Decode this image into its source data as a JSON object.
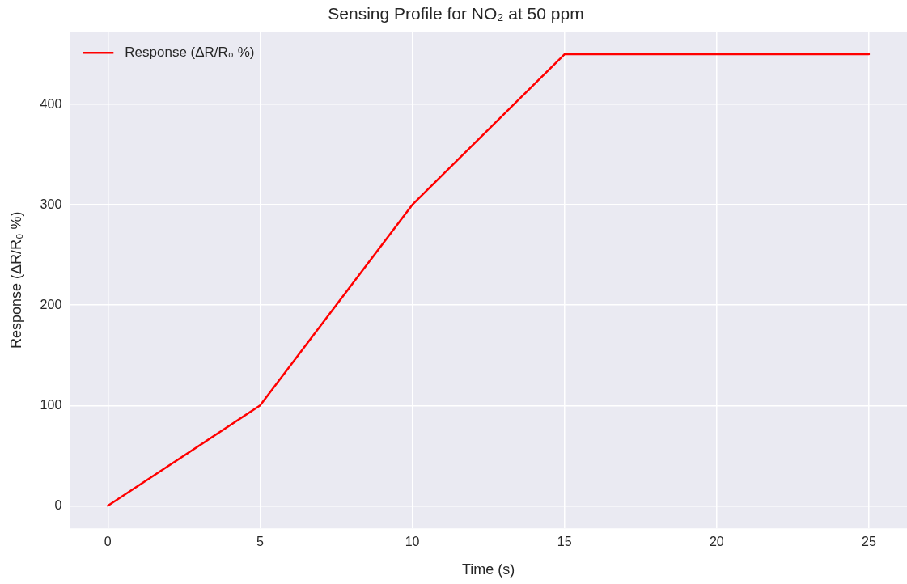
{
  "chart_data": {
    "type": "line",
    "title": "Sensing Profile for NO₂ at 50 ppm",
    "xlabel": "Time (s)",
    "ylabel": "Response (ΔR/R₀ %)",
    "x": [
      0,
      5,
      10,
      15,
      20,
      25
    ],
    "series": [
      {
        "name": "Response (ΔR/R₀ %)",
        "color": "#ff0000",
        "values": [
          0,
          100,
          300,
          450,
          450,
          450
        ]
      }
    ],
    "xlim": [
      -1.25,
      26.25
    ],
    "xticks": [
      0,
      5,
      10,
      15,
      20,
      25
    ],
    "ylim": [
      -22.5,
      472.5
    ],
    "yticks": [
      0,
      100,
      200,
      300,
      400
    ],
    "grid": true,
    "legend": "top left",
    "marker": "none",
    "line_style": "solid"
  }
}
